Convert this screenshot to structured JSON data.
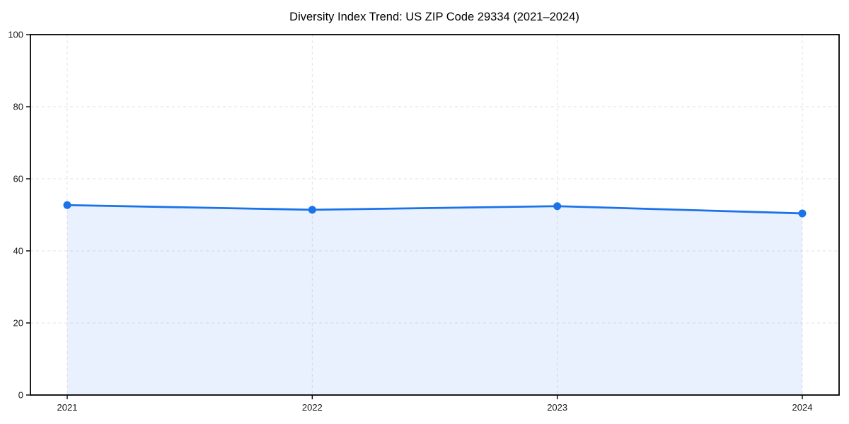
{
  "chart_data": {
    "type": "line",
    "area": true,
    "title": "Diversity Index Trend: US ZIP Code 29334 (2021–2024)",
    "categories": [
      "2021",
      "2022",
      "2023",
      "2024"
    ],
    "values": [
      52.7,
      51.4,
      52.4,
      50.4
    ],
    "xlabel": "",
    "ylabel": "",
    "ylim": [
      0,
      100
    ],
    "yticks": [
      0,
      20,
      40,
      60,
      80,
      100
    ],
    "grid": "dashed",
    "legend_position": "none",
    "colors": {
      "line": "#1a73e8",
      "marker": "#1a73e8",
      "area_fill": "#1a73e8",
      "area_fill_flat": "#e8f1fd",
      "grid": "#e2e2e2",
      "axis": "#000000",
      "tick_text": "#1a1a1a",
      "title_text": "#000000",
      "background": "#ffffff"
    },
    "area_opacity": 0.1
  }
}
